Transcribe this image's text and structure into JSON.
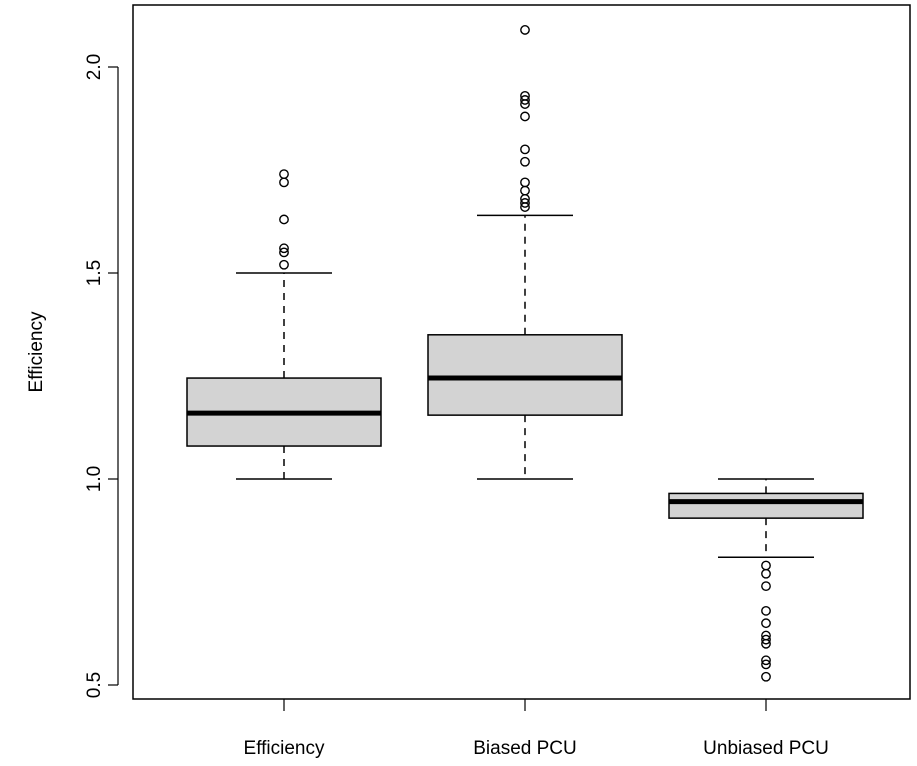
{
  "chart_data": {
    "type": "boxplot",
    "ylabel": "Efficiency",
    "xlabel": "",
    "ylim": [
      0.46,
      2.15
    ],
    "yticks": [
      0.5,
      1.0,
      1.5,
      2.0
    ],
    "ytick_labels": [
      "0.5",
      "1.0",
      "1.5",
      "2.0"
    ],
    "grid": false,
    "box_fill": "#d3d3d3",
    "series": [
      {
        "category": "Efficiency",
        "whisker_low": 1.0,
        "q1": 1.08,
        "median": 1.16,
        "q3": 1.245,
        "whisker_high": 1.5,
        "outliers": [
          1.52,
          1.55,
          1.56,
          1.63,
          1.72,
          1.74
        ]
      },
      {
        "category": "Biased PCU",
        "whisker_low": 1.0,
        "q1": 1.155,
        "median": 1.245,
        "q3": 1.35,
        "whisker_high": 1.64,
        "outliers": [
          1.66,
          1.67,
          1.68,
          1.7,
          1.72,
          1.77,
          1.8,
          1.88,
          1.91,
          1.92,
          1.93,
          2.09
        ]
      },
      {
        "category": "Unbiased PCU",
        "whisker_low": 0.81,
        "q1": 0.905,
        "median": 0.945,
        "q3": 0.965,
        "whisker_high": 1.0,
        "outliers": [
          0.52,
          0.55,
          0.56,
          0.6,
          0.61,
          0.62,
          0.65,
          0.68,
          0.74,
          0.77,
          0.79
        ]
      }
    ]
  }
}
